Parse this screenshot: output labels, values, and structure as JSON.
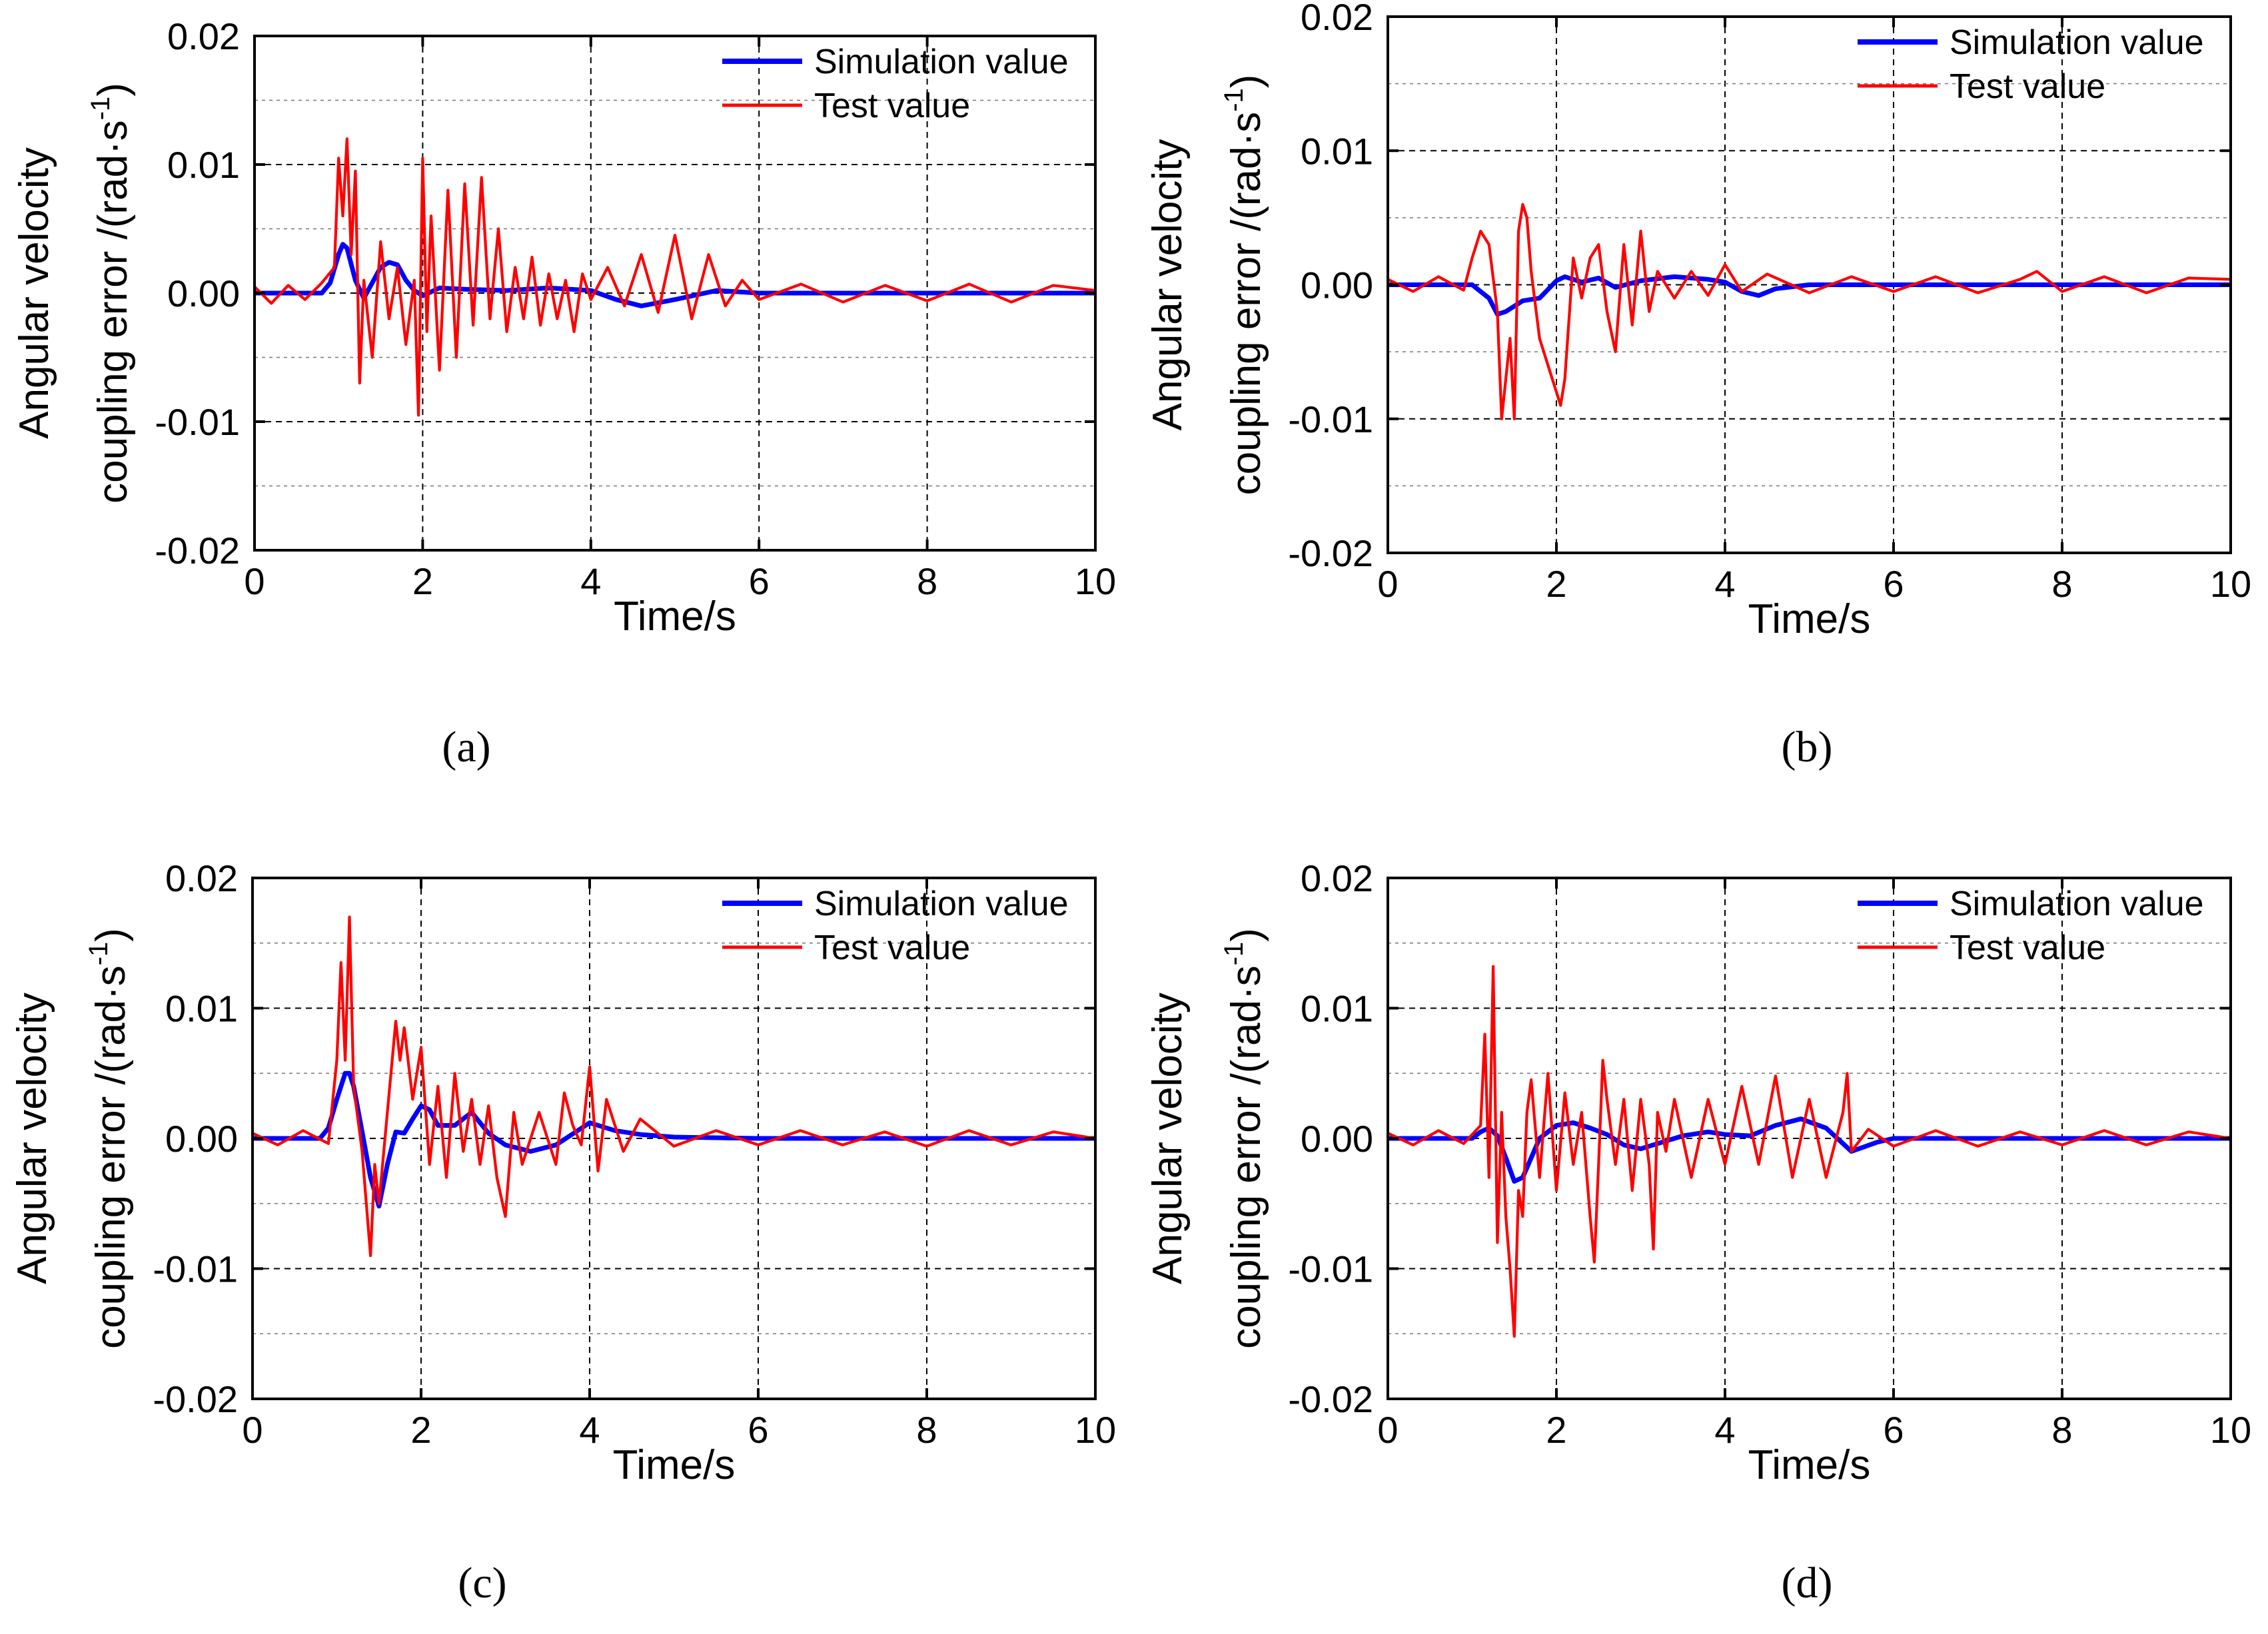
{
  "chart_data": [
    {
      "type": "line",
      "panel_label": "(a)",
      "xlabel": "Time/s",
      "ylabel_line1": "Angular velocity",
      "ylabel_line2": "coupling error /(rad·s",
      "ylabel_exp": "-1",
      "ylabel_close": ")",
      "xlim": [
        0,
        10
      ],
      "ylim": [
        -0.02,
        0.02
      ],
      "xticks": [
        "0",
        "2",
        "4",
        "6",
        "8",
        "10"
      ],
      "yticks": [
        "-0.02",
        "-0.01",
        "0.00",
        "0.01",
        "0.02"
      ],
      "grid": true,
      "legend_position": "top-right",
      "series": [
        {
          "name": "Simulation value",
          "color": "#0000ff",
          "x": [
            0,
            0.8,
            0.9,
            1.0,
            1.05,
            1.1,
            1.2,
            1.3,
            1.4,
            1.5,
            1.6,
            1.7,
            1.8,
            1.9,
            2.0,
            2.2,
            2.5,
            3.0,
            3.5,
            4.0,
            4.3,
            4.6,
            5.0,
            5.5,
            6.0,
            8.0,
            10.0
          ],
          "y": [
            0,
            0,
            0.0008,
            0.003,
            0.0038,
            0.0035,
            0.001,
            -0.0004,
            0.0008,
            0.002,
            0.0024,
            0.0022,
            0.001,
            0.0002,
            -0.0002,
            0.0004,
            0.0003,
            0.0002,
            0.0004,
            0.0002,
            -0.0005,
            -0.001,
            -0.0005,
            0.0002,
            0,
            0,
            0
          ]
        },
        {
          "name": "Test value",
          "color": "#ff0000",
          "x": [
            0,
            0.2,
            0.4,
            0.6,
            0.8,
            0.95,
            1.0,
            1.05,
            1.1,
            1.15,
            1.2,
            1.25,
            1.3,
            1.4,
            1.5,
            1.6,
            1.7,
            1.8,
            1.9,
            1.95,
            2.0,
            2.05,
            2.1,
            2.2,
            2.3,
            2.4,
            2.5,
            2.6,
            2.7,
            2.8,
            2.9,
            3.0,
            3.1,
            3.2,
            3.3,
            3.4,
            3.5,
            3.6,
            3.7,
            3.8,
            3.9,
            4.0,
            4.2,
            4.4,
            4.6,
            4.8,
            5.0,
            5.2,
            5.4,
            5.6,
            5.8,
            6.0,
            6.5,
            7.0,
            7.5,
            8.0,
            8.5,
            9.0,
            9.5,
            10.0
          ],
          "y": [
            0.0005,
            -0.0008,
            0.0006,
            -0.0005,
            0.0008,
            0.002,
            0.0105,
            0.006,
            0.012,
            0.003,
            0.0095,
            -0.007,
            0.001,
            -0.005,
            0.004,
            -0.002,
            0.002,
            -0.004,
            0.001,
            -0.0095,
            0.0105,
            -0.003,
            0.006,
            -0.006,
            0.008,
            -0.005,
            0.0085,
            -0.0025,
            0.009,
            -0.002,
            0.005,
            -0.003,
            0.002,
            -0.002,
            0.0028,
            -0.0025,
            0.0015,
            -0.002,
            0.001,
            -0.003,
            0.0015,
            -0.0005,
            0.002,
            -0.001,
            0.003,
            -0.0015,
            0.0045,
            -0.002,
            0.003,
            -0.001,
            0.001,
            -0.0005,
            0.0007,
            -0.0007,
            0.0006,
            -0.0006,
            0.0007,
            -0.0007,
            0.0006,
            0.0002
          ]
        }
      ]
    },
    {
      "type": "line",
      "panel_label": "(b)",
      "xlabel": "Time/s",
      "ylabel_line1": "Angular velocity",
      "ylabel_line2": "coupling error /(rad·s",
      "ylabel_exp": "-1",
      "ylabel_close": ")",
      "xlim": [
        0,
        10
      ],
      "ylim": [
        -0.02,
        0.02
      ],
      "xticks": [
        "0",
        "2",
        "4",
        "6",
        "8",
        "10"
      ],
      "yticks": [
        "-0.02",
        "-0.01",
        "0.00",
        "0.01",
        "0.02"
      ],
      "grid": true,
      "legend_position": "top-right",
      "series": [
        {
          "name": "Simulation value",
          "color": "#0000ff",
          "x": [
            0,
            1.0,
            1.2,
            1.3,
            1.4,
            1.6,
            1.8,
            2.0,
            2.1,
            2.3,
            2.5,
            2.7,
            3.0,
            3.4,
            3.8,
            4.0,
            4.2,
            4.4,
            4.6,
            5.0,
            10.0
          ],
          "y": [
            0,
            0,
            -0.001,
            -0.0022,
            -0.002,
            -0.0012,
            -0.001,
            0.0003,
            0.0006,
            0.0002,
            0.0005,
            -0.0002,
            0.0003,
            0.0006,
            0.0004,
            0.0002,
            -0.0005,
            -0.0008,
            -0.0003,
            0,
            0
          ]
        },
        {
          "name": "Test value",
          "color": "#ff0000",
          "x": [
            0,
            0.3,
            0.6,
            0.9,
            1.0,
            1.1,
            1.2,
            1.3,
            1.35,
            1.45,
            1.5,
            1.55,
            1.6,
            1.65,
            1.7,
            1.8,
            1.9,
            2.0,
            2.05,
            2.1,
            2.2,
            2.3,
            2.4,
            2.5,
            2.6,
            2.7,
            2.8,
            2.9,
            3.0,
            3.1,
            3.2,
            3.4,
            3.6,
            3.8,
            4.0,
            4.2,
            4.5,
            5.0,
            5.5,
            6.0,
            6.5,
            7.0,
            7.5,
            7.7,
            8.0,
            8.5,
            9.0,
            9.5,
            10.0
          ],
          "y": [
            0.0004,
            -0.0005,
            0.0006,
            -0.0004,
            0.002,
            0.004,
            0.003,
            -0.002,
            -0.01,
            -0.004,
            -0.01,
            0.004,
            0.006,
            0.005,
            0.001,
            -0.004,
            -0.006,
            -0.008,
            -0.009,
            -0.007,
            0.002,
            -0.001,
            0.002,
            0.003,
            -0.002,
            -0.005,
            0.003,
            -0.003,
            0.004,
            -0.002,
            0.001,
            -0.001,
            0.001,
            -0.0008,
            0.0015,
            -0.0005,
            0.0008,
            -0.0006,
            0.0006,
            -0.0005,
            0.0006,
            -0.0006,
            0.0004,
            0.001,
            -0.0005,
            0.0006,
            -0.0006,
            0.0005,
            0.0004
          ]
        }
      ]
    },
    {
      "type": "line",
      "panel_label": "(c)",
      "xlabel": "Time/s",
      "ylabel_line1": "Angular velocity",
      "ylabel_line2": "coupling error /(rad·s",
      "ylabel_exp": "-1",
      "ylabel_close": ")",
      "xlim": [
        0,
        10
      ],
      "ylim": [
        -0.02,
        0.02
      ],
      "xticks": [
        "0",
        "2",
        "4",
        "6",
        "8",
        "10"
      ],
      "yticks": [
        "-0.02",
        "-0.01",
        "0.00",
        "0.01",
        "0.02"
      ],
      "grid": true,
      "legend_position": "top-right",
      "series": [
        {
          "name": "Simulation value",
          "color": "#0000ff",
          "x": [
            0,
            0.8,
            0.9,
            1.0,
            1.1,
            1.15,
            1.2,
            1.3,
            1.4,
            1.5,
            1.6,
            1.7,
            1.8,
            1.9,
            2.0,
            2.1,
            2.2,
            2.4,
            2.6,
            2.8,
            3.0,
            3.3,
            3.6,
            4.0,
            4.3,
            4.6,
            5.0,
            6.0,
            10.0
          ],
          "y": [
            0,
            0,
            0.0008,
            0.003,
            0.005,
            0.005,
            0.004,
            0.0005,
            -0.003,
            -0.0052,
            -0.002,
            0.0005,
            0.0004,
            0.0015,
            0.0025,
            0.0022,
            0.001,
            0.001,
            0.002,
            0.0004,
            -0.0005,
            -0.001,
            -0.0005,
            0.0012,
            0.0006,
            0.0003,
            0.0001,
            0,
            0
          ]
        },
        {
          "name": "Test value",
          "color": "#ff0000",
          "x": [
            0,
            0.3,
            0.6,
            0.9,
            1.0,
            1.05,
            1.1,
            1.15,
            1.2,
            1.3,
            1.4,
            1.45,
            1.5,
            1.6,
            1.7,
            1.75,
            1.8,
            1.9,
            2.0,
            2.1,
            2.2,
            2.3,
            2.4,
            2.5,
            2.6,
            2.7,
            2.8,
            2.9,
            3.0,
            3.1,
            3.2,
            3.4,
            3.6,
            3.7,
            3.8,
            3.9,
            4.0,
            4.1,
            4.2,
            4.4,
            4.6,
            5.0,
            5.5,
            6.0,
            6.5,
            7.0,
            7.5,
            8.0,
            8.5,
            9.0,
            9.5,
            10.0
          ],
          "y": [
            0.0004,
            -0.0005,
            0.0006,
            -0.0004,
            0.006,
            0.0135,
            0.006,
            0.017,
            0.004,
            -0.001,
            -0.009,
            -0.002,
            -0.005,
            0.002,
            0.009,
            0.006,
            0.0085,
            0.003,
            0.007,
            -0.002,
            0.004,
            -0.003,
            0.005,
            -0.001,
            0.003,
            -0.002,
            0.0025,
            -0.003,
            -0.006,
            0.002,
            -0.002,
            0.002,
            -0.002,
            0.0035,
            0.001,
            -0.0005,
            0.0055,
            -0.0025,
            0.003,
            -0.001,
            0.0015,
            -0.0006,
            0.0006,
            -0.0005,
            0.0006,
            -0.0005,
            0.0005,
            -0.0006,
            0.0006,
            -0.0005,
            0.0005,
            0
          ]
        }
      ]
    },
    {
      "type": "line",
      "panel_label": "(d)",
      "xlabel": "Time/s",
      "ylabel_line1": "Angular velocity",
      "ylabel_line2": "coupling error /(rad·s",
      "ylabel_exp": "-1",
      "ylabel_close": ")",
      "xlim": [
        0,
        10
      ],
      "ylim": [
        -0.02,
        0.02
      ],
      "xticks": [
        "0",
        "2",
        "4",
        "6",
        "8",
        "10"
      ],
      "yticks": [
        "-0.02",
        "-0.01",
        "0.00",
        "0.01",
        "0.02"
      ],
      "grid": true,
      "legend_position": "top-right",
      "series": [
        {
          "name": "Simulation value",
          "color": "#0000ff",
          "x": [
            0,
            1.0,
            1.1,
            1.2,
            1.3,
            1.4,
            1.5,
            1.6,
            1.7,
            1.8,
            1.9,
            2.0,
            2.2,
            2.4,
            2.6,
            2.8,
            3.0,
            3.2,
            3.5,
            3.8,
            4.0,
            4.3,
            4.6,
            4.9,
            5.2,
            5.5,
            5.8,
            6.0,
            10.0
          ],
          "y": [
            0,
            0,
            0.0005,
            0.0008,
            0.0002,
            -0.0015,
            -0.0033,
            -0.003,
            -0.0015,
            0,
            0.0005,
            0.001,
            0.0012,
            0.0008,
            0.0003,
            -0.0005,
            -0.0008,
            -0.0004,
            0.0002,
            0.0005,
            0.0003,
            0.0002,
            0.001,
            0.0015,
            0.0008,
            -0.001,
            -0.0003,
            0,
            0
          ]
        },
        {
          "name": "Test value",
          "color": "#ff0000",
          "x": [
            0,
            0.3,
            0.6,
            0.9,
            1.1,
            1.15,
            1.2,
            1.25,
            1.3,
            1.35,
            1.4,
            1.45,
            1.5,
            1.55,
            1.6,
            1.65,
            1.7,
            1.8,
            1.9,
            2.0,
            2.1,
            2.2,
            2.3,
            2.4,
            2.45,
            2.5,
            2.55,
            2.6,
            2.7,
            2.8,
            2.9,
            3.0,
            3.1,
            3.15,
            3.2,
            3.3,
            3.4,
            3.6,
            3.8,
            4.0,
            4.2,
            4.4,
            4.6,
            4.8,
            5.0,
            5.2,
            5.4,
            5.45,
            5.5,
            5.7,
            6.0,
            6.5,
            7.0,
            7.5,
            8.0,
            8.5,
            9.0,
            9.5,
            10.0
          ],
          "y": [
            0.0004,
            -0.0005,
            0.0006,
            -0.0004,
            0.001,
            0.008,
            -0.003,
            0.0132,
            -0.008,
            0.002,
            -0.006,
            -0.01,
            -0.0152,
            -0.004,
            -0.006,
            0.002,
            0.0045,
            -0.003,
            0.005,
            -0.004,
            0.0035,
            -0.002,
            0.002,
            -0.006,
            -0.0095,
            -0.002,
            0.006,
            0.003,
            -0.002,
            0.003,
            -0.004,
            0.003,
            -0.002,
            -0.0085,
            0.002,
            -0.001,
            0.003,
            -0.003,
            0.003,
            -0.002,
            0.004,
            -0.002,
            0.0048,
            -0.003,
            0.003,
            -0.003,
            0.002,
            0.005,
            -0.001,
            0.0007,
            -0.0006,
            0.0006,
            -0.0006,
            0.0005,
            -0.0005,
            0.0006,
            -0.0005,
            0.0005,
            0
          ]
        }
      ]
    }
  ]
}
